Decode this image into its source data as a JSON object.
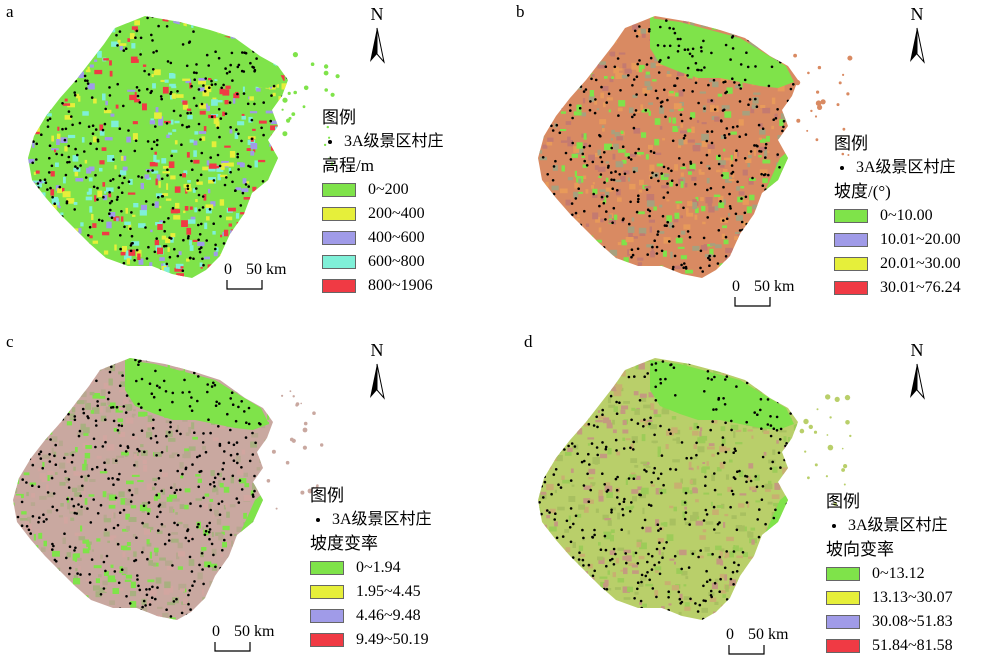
{
  "panels": [
    {
      "letter": "a",
      "north": "N",
      "scale": {
        "zero": "0",
        "fifty": "50 km"
      },
      "legend": {
        "title": "图例",
        "point_label": "3A级景区村庄",
        "variable": "高程/m",
        "classes": [
          {
            "label": "0~200",
            "color": "#7fe34a"
          },
          {
            "label": "200~400",
            "color": "#e6ef3a"
          },
          {
            "label": "400~600",
            "color": "#a09be8"
          },
          {
            "label": "600~800",
            "color": "#7ff0d8"
          },
          {
            "label": "800~1906",
            "color": "#f03a44"
          }
        ]
      },
      "map_palette": [
        "#7fe34a",
        "#e6ef3a",
        "#a09be8",
        "#f03a44",
        "#7ff0d8"
      ]
    },
    {
      "letter": "b",
      "north": "N",
      "scale": {
        "zero": "0",
        "fifty": "50 km"
      },
      "legend": {
        "title": "图例",
        "point_label": "3A级景区村庄",
        "variable": "坡度/(°)",
        "classes": [
          {
            "label": "0~10.00",
            "color": "#7fe34a"
          },
          {
            "label": "10.01~20.00",
            "color": "#a09be8"
          },
          {
            "label": "20.01~30.00",
            "color": "#e6ef3a"
          },
          {
            "label": "30.01~76.24",
            "color": "#f03a44"
          }
        ]
      },
      "map_palette": [
        "#d98a62",
        "#a7a07e",
        "#7fe34a",
        "#c47a70",
        "#e89a5a"
      ]
    },
    {
      "letter": "c",
      "north": "N",
      "scale": {
        "zero": "0",
        "fifty": "50 km"
      },
      "legend": {
        "title": "图例",
        "point_label": "3A级景区村庄",
        "variable": "坡度变率",
        "classes": [
          {
            "label": "0~1.94",
            "color": "#7fe34a"
          },
          {
            "label": "1.95~4.45",
            "color": "#e6ef3a"
          },
          {
            "label": "4.46~9.48",
            "color": "#a09be8"
          },
          {
            "label": "9.49~50.19",
            "color": "#f03a44"
          }
        ]
      },
      "map_palette": [
        "#c9a8a0",
        "#b8a890",
        "#7fe34a",
        "#d2a6a0",
        "#a8b080"
      ]
    },
    {
      "letter": "d",
      "north": "N",
      "scale": {
        "zero": "0",
        "fifty": "50 km"
      },
      "legend": {
        "title": "图例",
        "point_label": "3A级景区村庄",
        "variable": "坡向变率",
        "classes": [
          {
            "label": "0~13.12",
            "color": "#7fe34a"
          },
          {
            "label": "13.13~30.07",
            "color": "#e6ef3a"
          },
          {
            "label": "30.08~51.83",
            "color": "#a09be8"
          },
          {
            "label": "51.84~81.58",
            "color": "#f03a44"
          }
        ]
      },
      "map_palette": [
        "#b9cf6a",
        "#a8c060",
        "#c8b070",
        "#9ccc58",
        "#c49a80"
      ]
    }
  ],
  "plain_color": "#7fe34a",
  "village_color": "#000000"
}
